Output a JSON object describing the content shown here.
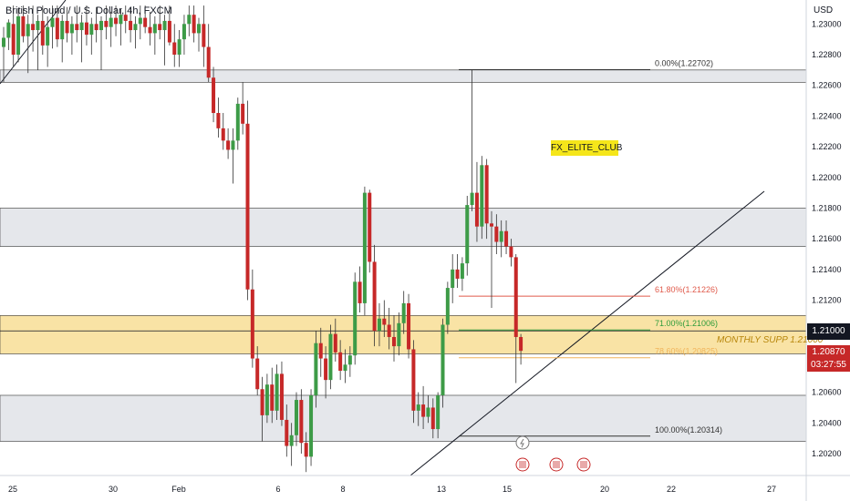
{
  "header": {
    "symbol_title": "British Pound / U.S. Dollar, 4h, FXCM",
    "currency": "USD"
  },
  "watermark": "FX_ELITE_CLUB",
  "price_tags": {
    "level": "1.21000",
    "current": "1.20870",
    "countdown": "03:27:55"
  },
  "annotation": "MONTHLY SUPP 1.21000",
  "colors": {
    "up": "#3d9b47",
    "down": "#c62828",
    "zone_fill": "#dfe1e6",
    "support_fill": "#f7d77f",
    "grid": "#d1d4dc",
    "fib_red": "#e05a4b",
    "fib_green": "#2e9c3b",
    "fib_orange": "#f0b45a"
  },
  "chart_data": {
    "type": "candlestick",
    "title": "British Pound / U.S. Dollar, 4h, FXCM",
    "y_axis": {
      "unit": "USD",
      "range": [
        1.2003,
        1.2308
      ],
      "ticks": [
        "1.23000",
        "1.22800",
        "1.22600",
        "1.22400",
        "1.22200",
        "1.22000",
        "1.21800",
        "1.21600",
        "1.21400",
        "1.21200",
        "1.21000",
        "1.20800",
        "1.20600",
        "1.20400",
        "1.20200"
      ]
    },
    "x_axis": {
      "ticks": [
        "25",
        "30",
        "Feb",
        "6",
        "8",
        "13",
        "15",
        "20",
        "22",
        "27"
      ]
    },
    "grid": false,
    "candles": [
      {
        "o": 1.2285,
        "h": 1.2298,
        "l": 1.2262,
        "c": 1.2291
      },
      {
        "o": 1.2291,
        "h": 1.2303,
        "l": 1.2283,
        "c": 1.2301
      },
      {
        "o": 1.23,
        "h": 1.2312,
        "l": 1.2272,
        "c": 1.228
      },
      {
        "o": 1.228,
        "h": 1.231,
        "l": 1.2275,
        "c": 1.2305
      },
      {
        "o": 1.2305,
        "h": 1.2312,
        "l": 1.2288,
        "c": 1.2292
      },
      {
        "o": 1.2292,
        "h": 1.2306,
        "l": 1.2268,
        "c": 1.23
      },
      {
        "o": 1.23,
        "h": 1.2312,
        "l": 1.2282,
        "c": 1.2296
      },
      {
        "o": 1.2296,
        "h": 1.2306,
        "l": 1.227,
        "c": 1.2302
      },
      {
        "o": 1.2302,
        "h": 1.2312,
        "l": 1.228,
        "c": 1.2286
      },
      {
        "o": 1.2286,
        "h": 1.2305,
        "l": 1.2272,
        "c": 1.2298
      },
      {
        "o": 1.2298,
        "h": 1.2312,
        "l": 1.2284,
        "c": 1.2304
      },
      {
        "o": 1.2304,
        "h": 1.2312,
        "l": 1.2285,
        "c": 1.229
      },
      {
        "o": 1.229,
        "h": 1.2306,
        "l": 1.2275,
        "c": 1.2302
      },
      {
        "o": 1.2302,
        "h": 1.2311,
        "l": 1.2288,
        "c": 1.2294
      },
      {
        "o": 1.2294,
        "h": 1.2305,
        "l": 1.228,
        "c": 1.23
      },
      {
        "o": 1.23,
        "h": 1.2312,
        "l": 1.2288,
        "c": 1.2296
      },
      {
        "o": 1.2296,
        "h": 1.2306,
        "l": 1.2275,
        "c": 1.2301
      },
      {
        "o": 1.2301,
        "h": 1.2312,
        "l": 1.2286,
        "c": 1.2293
      },
      {
        "o": 1.2293,
        "h": 1.2304,
        "l": 1.228,
        "c": 1.23
      },
      {
        "o": 1.23,
        "h": 1.2311,
        "l": 1.2288,
        "c": 1.2296
      },
      {
        "o": 1.2296,
        "h": 1.2305,
        "l": 1.227,
        "c": 1.2302
      },
      {
        "o": 1.2302,
        "h": 1.2312,
        "l": 1.229,
        "c": 1.2298
      },
      {
        "o": 1.2298,
        "h": 1.2308,
        "l": 1.2285,
        "c": 1.2304
      },
      {
        "o": 1.2304,
        "h": 1.2312,
        "l": 1.2292,
        "c": 1.23
      },
      {
        "o": 1.23,
        "h": 1.231,
        "l": 1.2286,
        "c": 1.2306
      },
      {
        "o": 1.2306,
        "h": 1.2312,
        "l": 1.2294,
        "c": 1.2302
      },
      {
        "o": 1.2302,
        "h": 1.2311,
        "l": 1.2288,
        "c": 1.2296
      },
      {
        "o": 1.2296,
        "h": 1.2305,
        "l": 1.2284,
        "c": 1.23
      },
      {
        "o": 1.23,
        "h": 1.2312,
        "l": 1.229,
        "c": 1.2304
      },
      {
        "o": 1.2304,
        "h": 1.2312,
        "l": 1.2294,
        "c": 1.2298
      },
      {
        "o": 1.2298,
        "h": 1.2308,
        "l": 1.2286,
        "c": 1.2294
      },
      {
        "o": 1.2294,
        "h": 1.2305,
        "l": 1.228,
        "c": 1.23
      },
      {
        "o": 1.23,
        "h": 1.2312,
        "l": 1.229,
        "c": 1.2296
      },
      {
        "o": 1.2296,
        "h": 1.2306,
        "l": 1.2273,
        "c": 1.2302
      },
      {
        "o": 1.2302,
        "h": 1.2312,
        "l": 1.2286,
        "c": 1.2288
      },
      {
        "o": 1.2288,
        "h": 1.23,
        "l": 1.2272,
        "c": 1.228
      },
      {
        "o": 1.228,
        "h": 1.2296,
        "l": 1.2272,
        "c": 1.229
      },
      {
        "o": 1.229,
        "h": 1.2306,
        "l": 1.228,
        "c": 1.23
      },
      {
        "o": 1.23,
        "h": 1.2312,
        "l": 1.2292,
        "c": 1.2306
      },
      {
        "o": 1.2306,
        "h": 1.2312,
        "l": 1.2288,
        "c": 1.2294
      },
      {
        "o": 1.2294,
        "h": 1.2304,
        "l": 1.2282,
        "c": 1.23
      },
      {
        "o": 1.23,
        "h": 1.2312,
        "l": 1.2272,
        "c": 1.2285
      },
      {
        "o": 1.2285,
        "h": 1.23,
        "l": 1.2262,
        "c": 1.2265
      },
      {
        "o": 1.2265,
        "h": 1.2272,
        "l": 1.2236,
        "c": 1.2242
      },
      {
        "o": 1.2242,
        "h": 1.2252,
        "l": 1.2226,
        "c": 1.2232
      },
      {
        "o": 1.2232,
        "h": 1.2242,
        "l": 1.2218,
        "c": 1.2224
      },
      {
        "o": 1.2224,
        "h": 1.2232,
        "l": 1.2212,
        "c": 1.2218
      },
      {
        "o": 1.2218,
        "h": 1.2232,
        "l": 1.2196,
        "c": 1.2224
      },
      {
        "o": 1.2224,
        "h": 1.2252,
        "l": 1.2218,
        "c": 1.2248
      },
      {
        "o": 1.2248,
        "h": 1.2262,
        "l": 1.2228,
        "c": 1.2235
      },
      {
        "o": 1.2235,
        "h": 1.225,
        "l": 1.212,
        "c": 1.2127
      },
      {
        "o": 1.2127,
        "h": 1.214,
        "l": 1.2076,
        "c": 1.2082
      },
      {
        "o": 1.2082,
        "h": 1.209,
        "l": 1.2058,
        "c": 1.2062
      },
      {
        "o": 1.2062,
        "h": 1.207,
        "l": 1.2028,
        "c": 1.2045
      },
      {
        "o": 1.2045,
        "h": 1.2072,
        "l": 1.204,
        "c": 1.2065
      },
      {
        "o": 1.2065,
        "h": 1.2076,
        "l": 1.204,
        "c": 1.2048
      },
      {
        "o": 1.2048,
        "h": 1.2078,
        "l": 1.2042,
        "c": 1.2072
      },
      {
        "o": 1.2072,
        "h": 1.208,
        "l": 1.2038,
        "c": 1.2042
      },
      {
        "o": 1.2042,
        "h": 1.2052,
        "l": 1.2018,
        "c": 1.2025
      },
      {
        "o": 1.2025,
        "h": 1.204,
        "l": 1.2012,
        "c": 1.2032
      },
      {
        "o": 1.2032,
        "h": 1.206,
        "l": 1.2025,
        "c": 1.2055
      },
      {
        "o": 1.2055,
        "h": 1.2062,
        "l": 1.202,
        "c": 1.2027
      },
      {
        "o": 1.2027,
        "h": 1.2034,
        "l": 1.2008,
        "c": 1.2018
      },
      {
        "o": 1.2018,
        "h": 1.2062,
        "l": 1.2012,
        "c": 1.2058
      },
      {
        "o": 1.2058,
        "h": 1.21,
        "l": 1.205,
        "c": 1.2092
      },
      {
        "o": 1.2092,
        "h": 1.2102,
        "l": 1.207,
        "c": 1.2082
      },
      {
        "o": 1.2082,
        "h": 1.209,
        "l": 1.2056,
        "c": 1.2068
      },
      {
        "o": 1.2068,
        "h": 1.2104,
        "l": 1.2062,
        "c": 1.2098
      },
      {
        "o": 1.2098,
        "h": 1.2108,
        "l": 1.208,
        "c": 1.2086
      },
      {
        "o": 1.2086,
        "h": 1.2094,
        "l": 1.2068,
        "c": 1.2074
      },
      {
        "o": 1.2074,
        "h": 1.2088,
        "l": 1.2066,
        "c": 1.2078
      },
      {
        "o": 1.2078,
        "h": 1.209,
        "l": 1.207,
        "c": 1.2084
      },
      {
        "o": 1.2084,
        "h": 1.2138,
        "l": 1.2078,
        "c": 1.2132
      },
      {
        "o": 1.2132,
        "h": 1.2142,
        "l": 1.2112,
        "c": 1.2118
      },
      {
        "o": 1.2118,
        "h": 1.2194,
        "l": 1.211,
        "c": 1.219
      },
      {
        "o": 1.219,
        "h": 1.2192,
        "l": 1.2138,
        "c": 1.2145
      },
      {
        "o": 1.2145,
        "h": 1.2156,
        "l": 1.209,
        "c": 1.21
      },
      {
        "o": 1.21,
        "h": 1.2118,
        "l": 1.209,
        "c": 1.2108
      },
      {
        "o": 1.2108,
        "h": 1.212,
        "l": 1.2096,
        "c": 1.2104
      },
      {
        "o": 1.2104,
        "h": 1.2115,
        "l": 1.2088,
        "c": 1.2096
      },
      {
        "o": 1.2096,
        "h": 1.211,
        "l": 1.208,
        "c": 1.209
      },
      {
        "o": 1.209,
        "h": 1.2112,
        "l": 1.2084,
        "c": 1.2105
      },
      {
        "o": 1.2105,
        "h": 1.2126,
        "l": 1.2098,
        "c": 1.2118
      },
      {
        "o": 1.2118,
        "h": 1.2124,
        "l": 1.2082,
        "c": 1.2088
      },
      {
        "o": 1.2088,
        "h": 1.2094,
        "l": 1.204,
        "c": 1.2048
      },
      {
        "o": 1.2048,
        "h": 1.206,
        "l": 1.2038,
        "c": 1.2052
      },
      {
        "o": 1.2052,
        "h": 1.2064,
        "l": 1.2036,
        "c": 1.2044
      },
      {
        "o": 1.2044,
        "h": 1.2058,
        "l": 1.204,
        "c": 1.205
      },
      {
        "o": 1.205,
        "h": 1.2056,
        "l": 1.203,
        "c": 1.2036
      },
      {
        "o": 1.2036,
        "h": 1.206,
        "l": 1.203,
        "c": 1.2058
      },
      {
        "o": 1.2058,
        "h": 1.2108,
        "l": 1.205,
        "c": 1.2104
      },
      {
        "o": 1.2104,
        "h": 1.2132,
        "l": 1.2098,
        "c": 1.2128
      },
      {
        "o": 1.2128,
        "h": 1.215,
        "l": 1.2118,
        "c": 1.214
      },
      {
        "o": 1.214,
        "h": 1.215,
        "l": 1.2128,
        "c": 1.2134
      },
      {
        "o": 1.2134,
        "h": 1.2148,
        "l": 1.2126,
        "c": 1.2144
      },
      {
        "o": 1.2144,
        "h": 1.2188,
        "l": 1.2136,
        "c": 1.2182
      },
      {
        "o": 1.2182,
        "h": 1.227,
        "l": 1.2178,
        "c": 1.219
      },
      {
        "o": 1.219,
        "h": 1.221,
        "l": 1.2158,
        "c": 1.2168
      },
      {
        "o": 1.2168,
        "h": 1.2214,
        "l": 1.216,
        "c": 1.2208
      },
      {
        "o": 1.2208,
        "h": 1.2212,
        "l": 1.216,
        "c": 1.217
      },
      {
        "o": 1.217,
        "h": 1.2178,
        "l": 1.2115,
        "c": 1.2168
      },
      {
        "o": 1.2168,
        "h": 1.2176,
        "l": 1.215,
        "c": 1.2158
      },
      {
        "o": 1.2158,
        "h": 1.2172,
        "l": 1.2148,
        "c": 1.2165
      },
      {
        "o": 1.2165,
        "h": 1.2172,
        "l": 1.215,
        "c": 1.2155
      },
      {
        "o": 1.2155,
        "h": 1.216,
        "l": 1.2142,
        "c": 1.2148
      },
      {
        "o": 1.2148,
        "h": 1.215,
        "l": 1.2066,
        "c": 1.2096
      },
      {
        "o": 1.2096,
        "h": 1.2098,
        "l": 1.2078,
        "c": 1.2087
      }
    ],
    "zones": [
      {
        "type": "resistance",
        "top": 1.227,
        "bottom": 1.2262
      },
      {
        "type": "resistance",
        "top": 1.218,
        "bottom": 1.2155
      },
      {
        "type": "support",
        "top": 1.211,
        "bottom": 1.2085
      },
      {
        "type": "support",
        "top": 1.2058,
        "bottom": 1.2028
      }
    ],
    "fib_levels": [
      {
        "label": "0.00%(1.22702)",
        "price": 1.22702
      },
      {
        "label": "61.80%(1.21226)",
        "price": 1.21226
      },
      {
        "label": "71.00%(1.21006)",
        "price": 1.21006
      },
      {
        "label": "78.60%(1.20825)",
        "price": 1.20825
      },
      {
        "label": "100.00%(1.20314)",
        "price": 1.20314
      }
    ]
  }
}
